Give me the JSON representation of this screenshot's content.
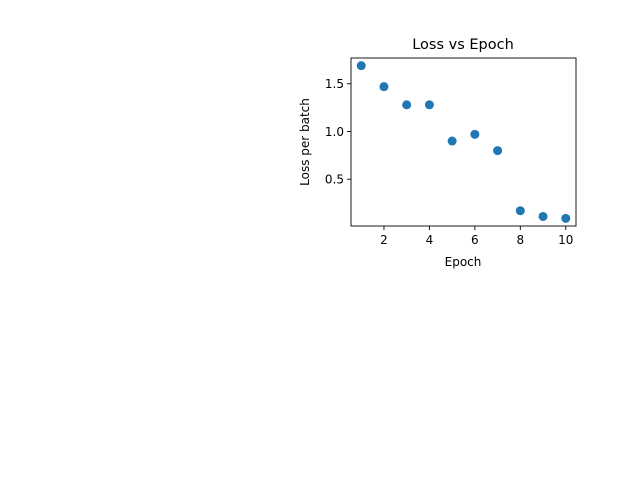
{
  "chart_data": {
    "type": "scatter",
    "title": "Loss vs Epoch",
    "xlabel": "Epoch",
    "ylabel": "Loss per batch",
    "x": [
      1,
      2,
      3,
      4,
      5,
      6,
      7,
      8,
      9,
      10
    ],
    "y": [
      1.69,
      1.47,
      1.28,
      1.28,
      0.9,
      0.97,
      0.8,
      0.17,
      0.11,
      0.09
    ],
    "xlim": [
      0.55,
      10.45
    ],
    "ylim": [
      0.01,
      1.77
    ],
    "xticks": [
      2,
      4,
      6,
      8,
      10
    ],
    "xtick_labels": [
      "2",
      "4",
      "6",
      "8",
      "10"
    ],
    "yticks": [
      0.5,
      1.0,
      1.5
    ],
    "ytick_labels": [
      "0.5",
      "1.0",
      "1.5"
    ],
    "grid": false,
    "legend": "none",
    "marker_color": "#1f77b4"
  }
}
